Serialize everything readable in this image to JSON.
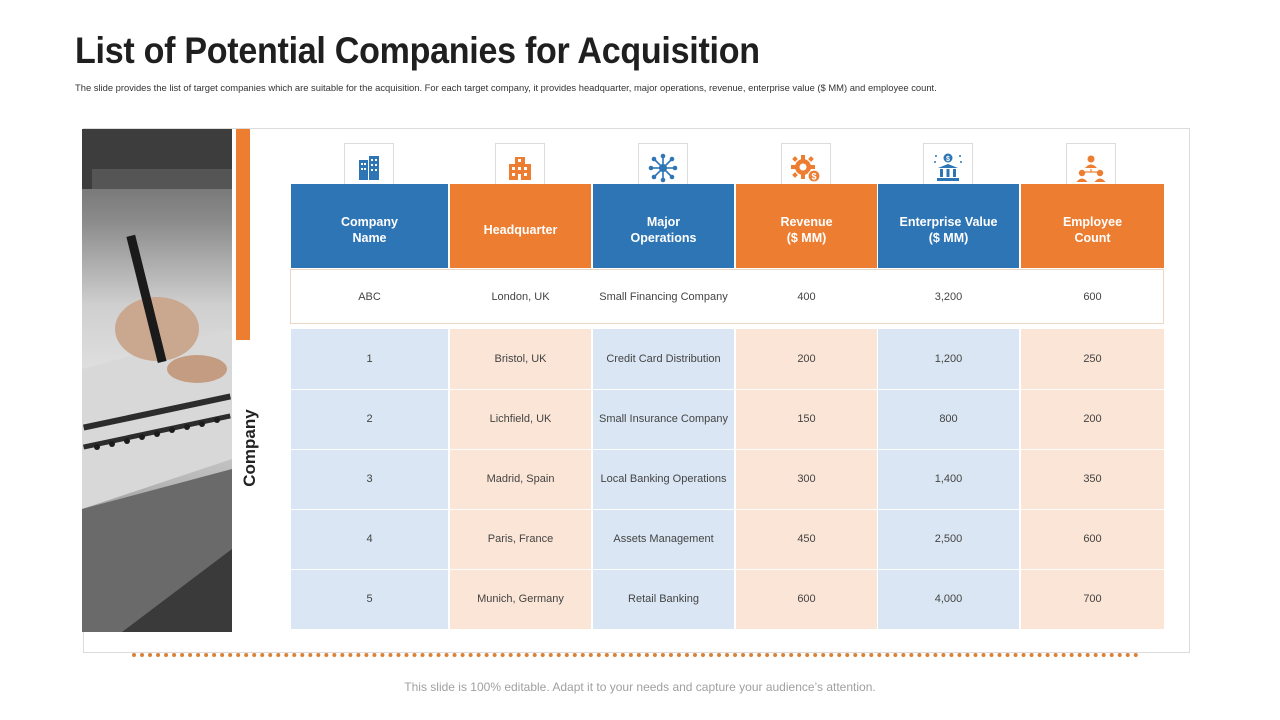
{
  "header": {
    "title": "List of Potential Companies for Acquisition",
    "subtitle": "The slide provides the list of target companies which are suitable for the acquisition. For each target company, it provides headquarter, major operations, revenue, enterprise value ($ MM) and employee count."
  },
  "side_label": "Company",
  "colors": {
    "blue": "#2E75B6",
    "orange": "#ED7D31",
    "light_blue": "#DAE6F3",
    "light_orange": "#FBE5D6"
  },
  "columns": [
    {
      "label": "Company\nName",
      "icon": "building-icon",
      "color": "blue"
    },
    {
      "label": "Headquarter",
      "icon": "office-building-icon",
      "color": "orange"
    },
    {
      "label": "Major\nOperations",
      "icon": "network-icon",
      "color": "blue"
    },
    {
      "label": "Revenue\n($ MM)",
      "icon": "gear-dollar-icon",
      "color": "orange"
    },
    {
      "label": "Enterprise Value\n($ MM)",
      "icon": "bank-value-icon",
      "color": "blue"
    },
    {
      "label": "Employee\nCount",
      "icon": "team-icon",
      "color": "orange"
    }
  ],
  "rows": [
    [
      "ABC",
      "London, UK",
      "Small Financing Company",
      "400",
      "3,200",
      "600"
    ],
    [
      "1",
      "Bristol, UK",
      "Credit Card Distribution",
      "200",
      "1,200",
      "250"
    ],
    [
      "2",
      "Lichfield, UK",
      "Small Insurance Company",
      "150",
      "800",
      "200"
    ],
    [
      "3",
      "Madrid, Spain",
      "Local Banking Operations",
      "300",
      "1,400",
      "350"
    ],
    [
      "4",
      "Paris, France",
      "Assets Management",
      "450",
      "2,500",
      "600"
    ],
    [
      "5",
      "Munich, Germany",
      "Retail Banking",
      "600",
      "4,000",
      "700"
    ]
  ],
  "footer": "This slide is 100% editable. Adapt it to your needs and capture your audience’s attention."
}
